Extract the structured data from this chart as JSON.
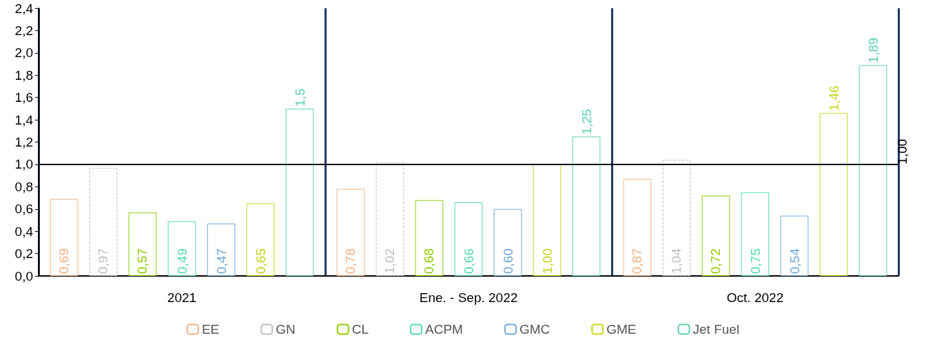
{
  "chart_data": {
    "type": "bar",
    "categories": [
      "2021",
      "Ene. - Sep. 2022",
      "Oct. 2022"
    ],
    "series": [
      {
        "name": "EE",
        "color": "#f4b183",
        "values": [
          0.69,
          0.78,
          0.87
        ],
        "value_labels": [
          "0,69",
          "0,78",
          "0,87"
        ]
      },
      {
        "name": "GN",
        "color": "#bfbfbf",
        "line_style": "dashed",
        "values": [
          0.97,
          1.02,
          1.04
        ],
        "value_labels": [
          "0,97",
          "1,02",
          "1,04"
        ]
      },
      {
        "name": "CL",
        "color": "#8fce00",
        "values": [
          0.57,
          0.68,
          0.72
        ],
        "value_labels": [
          "0,57",
          "0,68",
          "0,72"
        ]
      },
      {
        "name": "ACPM",
        "color": "#4fdcae",
        "values": [
          0.49,
          0.66,
          0.75
        ],
        "value_labels": [
          "0,49",
          "0,66",
          "0,75"
        ]
      },
      {
        "name": "GMC",
        "color": "#6fa8dc",
        "values": [
          0.47,
          0.6,
          0.54
        ],
        "value_labels": [
          "0,47",
          "0,60",
          "0,54"
        ]
      },
      {
        "name": "GME",
        "color": "#c8d41c",
        "values": [
          0.65,
          1.0,
          1.46
        ],
        "value_labels": [
          "0,65",
          "1,00",
          "1,46"
        ]
      },
      {
        "name": "Jet Fuel",
        "color": "#5ccfb4",
        "values": [
          1.5,
          1.25,
          1.89
        ],
        "value_labels": [
          "1,5",
          "1,25",
          "1,89"
        ]
      }
    ],
    "ylim": [
      0,
      2.4
    ],
    "yticks": [
      {
        "value": 0,
        "label": "0,0"
      },
      {
        "value": 0.2,
        "label": "0,2"
      },
      {
        "value": 0.4,
        "label": "0,4"
      },
      {
        "value": 0.6,
        "label": "0,6"
      },
      {
        "value": 0.8,
        "label": "0,8"
      },
      {
        "value": 1.0,
        "label": "1,0"
      },
      {
        "value": 1.2,
        "label": "1,2"
      },
      {
        "value": 1.4,
        "label": "1,4"
      },
      {
        "value": 1.6,
        "label": "1,6"
      },
      {
        "value": 1.8,
        "label": "1,8"
      },
      {
        "value": 2.0,
        "label": "2,0"
      },
      {
        "value": 2.2,
        "label": "2,2"
      },
      {
        "value": 2.4,
        "label": "2,4"
      }
    ],
    "ref_lines": [
      {
        "axis": "y",
        "value": 1.0,
        "label": "1,00",
        "color": "#000000"
      }
    ],
    "grid": false,
    "legend": "bottom"
  }
}
